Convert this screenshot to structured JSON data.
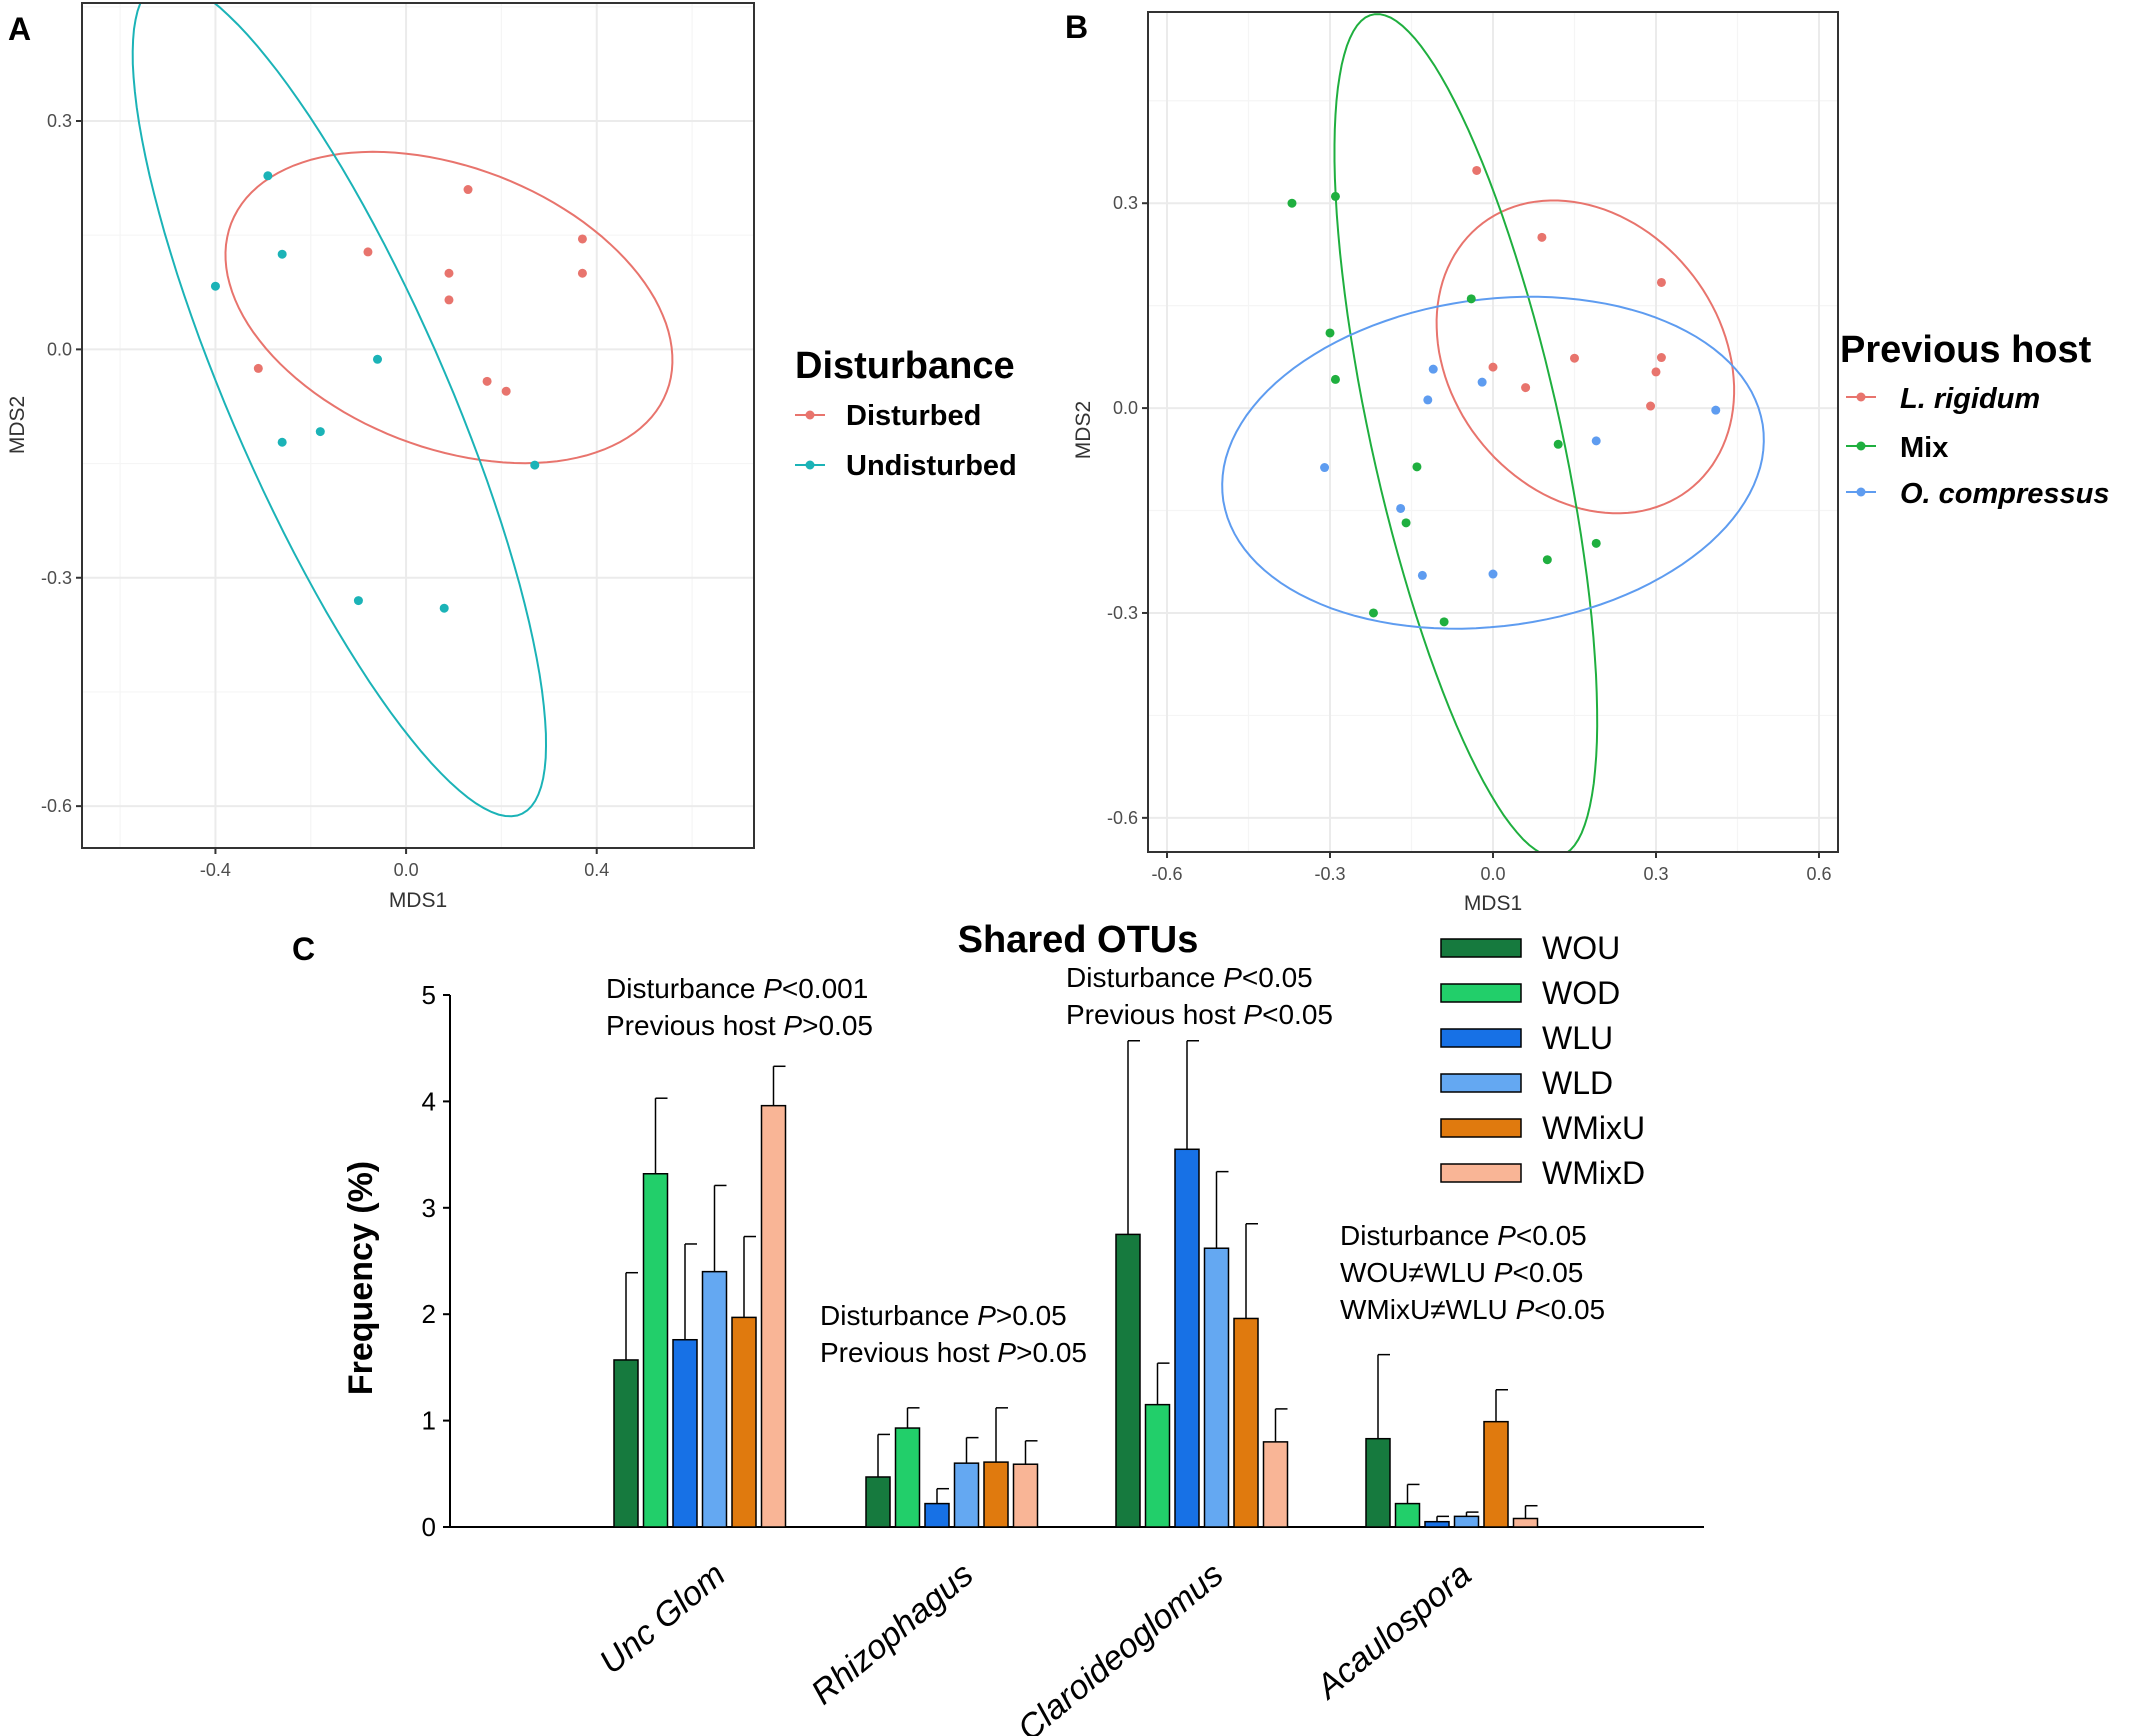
{
  "panel_a_letter": "A",
  "panel_b_letter": "B",
  "panel_c_letter": "C",
  "chart_data": [
    {
      "type": "scatter",
      "panel": "A",
      "xlabel": "MDS1",
      "ylabel": "MDS2",
      "xlim": [
        -0.68,
        0.73
      ],
      "ylim": [
        -0.655,
        0.455
      ],
      "xticks": [
        "-0.4",
        "0.0",
        "0.4"
      ],
      "xtick_values": [
        -0.4,
        0.0,
        0.4
      ],
      "yticks": [
        "0.3",
        "0.0",
        "-0.3",
        "-0.6"
      ],
      "ytick_values": [
        0.3,
        0.0,
        -0.3,
        -0.6
      ],
      "legend_title": "Disturbance",
      "series": [
        {
          "name": "Disturbed",
          "color": "#E8746D",
          "points": [
            [
              0.13,
              0.21
            ],
            [
              0.37,
              0.145
            ],
            [
              0.37,
              0.1
            ],
            [
              -0.08,
              0.128
            ],
            [
              0.09,
              0.1
            ],
            [
              0.09,
              0.065
            ],
            [
              -0.31,
              -0.025
            ],
            [
              0.17,
              -0.042
            ],
            [
              0.21,
              -0.055
            ]
          ],
          "ellipse": {
            "cx": 0.09,
            "cy": 0.055,
            "rx": 0.475,
            "ry": 0.19,
            "angle_deg": -10
          }
        },
        {
          "name": "Undisturbed",
          "color": "#1BB3B7",
          "points": [
            [
              -0.29,
              0.228
            ],
            [
              -0.26,
              0.125
            ],
            [
              -0.4,
              0.083
            ],
            [
              -0.06,
              -0.013
            ],
            [
              -0.18,
              -0.108
            ],
            [
              -0.26,
              -0.122
            ],
            [
              0.27,
              -0.152
            ],
            [
              -0.1,
              -0.33
            ],
            [
              0.08,
              -0.34
            ]
          ],
          "ellipse": {
            "cx": -0.14,
            "cy": -0.065,
            "rx": 0.67,
            "ry": 0.2,
            "angle_deg": -53
          }
        }
      ]
    },
    {
      "type": "scatter",
      "panel": "B",
      "xlabel": "MDS1",
      "ylabel": "MDS2",
      "xlim": [
        -0.635,
        0.635
      ],
      "ylim": [
        -0.65,
        0.58
      ],
      "xticks": [
        "-0.6",
        "-0.3",
        "0.0",
        "0.3",
        "0.6"
      ],
      "xtick_values": [
        -0.6,
        -0.3,
        0.0,
        0.3,
        0.6
      ],
      "yticks": [
        "0.3",
        "0.0",
        "-0.3",
        "-0.6"
      ],
      "ytick_values": [
        0.3,
        0.0,
        -0.3,
        -0.6
      ],
      "legend_title": "Previous host",
      "series": [
        {
          "name": "L. rigidum",
          "color": "#E8746D",
          "points": [
            [
              -0.03,
              0.348
            ],
            [
              0.09,
              0.25
            ],
            [
              0.31,
              0.184
            ],
            [
              0.31,
              0.074
            ],
            [
              0.15,
              0.073
            ],
            [
              0.3,
              0.053
            ],
            [
              0.0,
              0.06
            ],
            [
              0.06,
              0.03
            ],
            [
              0.29,
              0.003
            ]
          ],
          "ellipse": {
            "cx": 0.17,
            "cy": 0.075,
            "rx": 0.285,
            "ry": 0.215,
            "angle_deg": -25
          }
        },
        {
          "name": "Mix",
          "color": "#1FAF3F",
          "points": [
            [
              -0.37,
              0.3
            ],
            [
              -0.29,
              0.31
            ],
            [
              -0.04,
              0.16
            ],
            [
              -0.3,
              0.11
            ],
            [
              -0.29,
              0.042
            ],
            [
              0.12,
              -0.053
            ],
            [
              -0.14,
              -0.086
            ],
            [
              -0.16,
              -0.168
            ],
            [
              0.19,
              -0.198
            ],
            [
              0.1,
              -0.222
            ],
            [
              -0.22,
              -0.3
            ],
            [
              -0.09,
              -0.313
            ]
          ],
          "ellipse": {
            "cx": -0.05,
            "cy": -0.04,
            "rx": 0.64,
            "ry": 0.172,
            "angle_deg": -74
          }
        },
        {
          "name": "O. compressus",
          "color": "#5E9CF0",
          "points": [
            [
              -0.11,
              0.057
            ],
            [
              -0.02,
              0.038
            ],
            [
              -0.12,
              0.012
            ],
            [
              0.41,
              -0.003
            ],
            [
              0.19,
              -0.048
            ],
            [
              -0.31,
              -0.087
            ],
            [
              -0.17,
              -0.147
            ],
            [
              -0.13,
              -0.245
            ],
            [
              0.0,
              -0.243
            ]
          ],
          "ellipse": {
            "cx": 0.0,
            "cy": -0.08,
            "rx": 0.5,
            "ry": 0.24,
            "angle_deg": 5
          }
        }
      ]
    },
    {
      "type": "bar",
      "panel": "C",
      "title": "Shared OTUs",
      "ylabel": "Frequency (%)",
      "ylim": [
        0,
        5
      ],
      "yticks": [
        "0",
        "1",
        "2",
        "3",
        "4",
        "5"
      ],
      "ytick_values": [
        0,
        1,
        2,
        3,
        4,
        5
      ],
      "categories": [
        "Unc Glom",
        "Rhizophagus",
        "Claroideoglomus",
        "Acaulospora"
      ],
      "series": [
        {
          "name": "WOU",
          "color": "#167A3E",
          "values": [
            1.57,
            0.47,
            2.75,
            0.83
          ],
          "errors": [
            0.82,
            0.4,
            1.82,
            0.79
          ]
        },
        {
          "name": "WOD",
          "color": "#22CF6A",
          "values": [
            3.32,
            0.93,
            1.15,
            0.22
          ],
          "errors": [
            0.71,
            0.19,
            0.39,
            0.18
          ]
        },
        {
          "name": "WLU",
          "color": "#1771E6",
          "values": [
            1.76,
            0.22,
            3.55,
            0.05
          ],
          "errors": [
            0.9,
            0.14,
            1.02,
            0.05
          ]
        },
        {
          "name": "WLD",
          "color": "#64A8F2",
          "values": [
            2.4,
            0.6,
            2.62,
            0.1
          ],
          "errors": [
            0.81,
            0.24,
            0.72,
            0.04
          ]
        },
        {
          "name": "WMixU",
          "color": "#E07A0E",
          "values": [
            1.97,
            0.61,
            1.96,
            0.99
          ],
          "errors": [
            0.76,
            0.51,
            0.89,
            0.3
          ]
        },
        {
          "name": "WMixD",
          "color": "#F9B596",
          "values": [
            3.96,
            0.59,
            0.8,
            0.08
          ],
          "errors": [
            0.37,
            0.22,
            0.31,
            0.12
          ]
        }
      ],
      "annotations": [
        {
          "lines": [
            [
              "Disturbance ",
              "P",
              "<0.001"
            ],
            [
              "Previous host ",
              "P",
              ">0.05"
            ]
          ]
        },
        {
          "lines": [
            [
              "Disturbance ",
              "P",
              ">0.05"
            ],
            [
              "Previous host ",
              "P",
              ">0.05"
            ]
          ]
        },
        {
          "lines": [
            [
              "Disturbance ",
              "P",
              "<0.05"
            ],
            [
              "Previous host ",
              "P",
              "<0.05"
            ]
          ]
        },
        {
          "lines": [
            [
              "Disturbance ",
              "P",
              "<0.05"
            ],
            [
              "WOU≠WLU ",
              "P",
              "<0.05"
            ],
            [
              "WMixU≠WLU ",
              "P",
              "<0.05"
            ]
          ]
        }
      ]
    }
  ]
}
